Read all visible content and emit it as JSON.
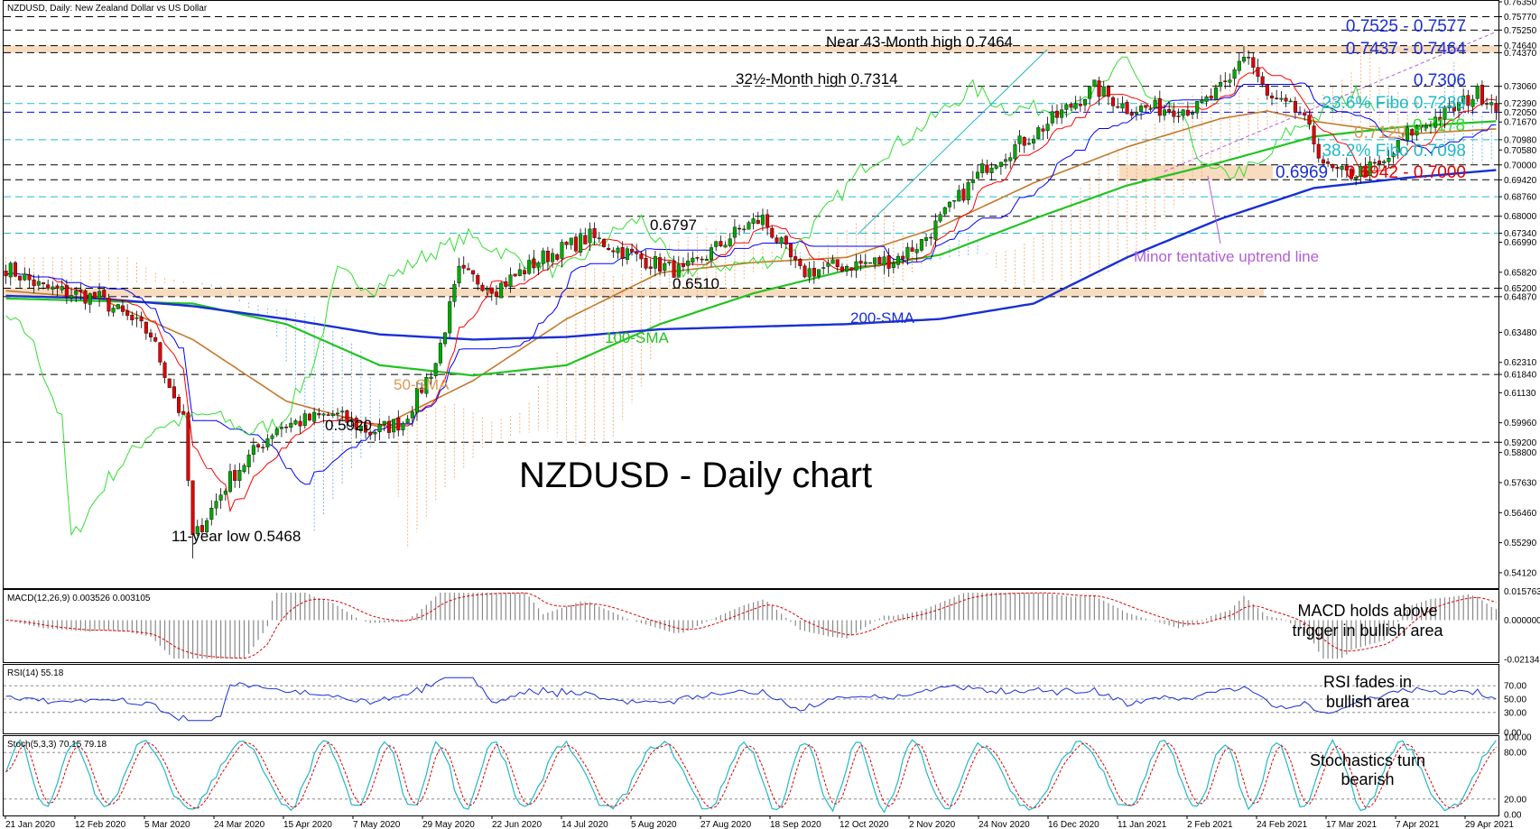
{
  "window_title": "NZDUSD, Daily:  New Zealand Dollar vs US Dollar",
  "colors": {
    "bull": "#00a800",
    "bear": "#e00000",
    "sma50": "#c47a2c",
    "sma100": "#22c322",
    "sma200": "#1a2fd4",
    "tenkan": "#ff0000",
    "kijun": "#0000ff",
    "chikou": "#33dd33",
    "cloud_a": "#f1a66f",
    "cloud_b": "#6fa8f1",
    "zone": "#f6d3b0",
    "cyan": "#22b8c7",
    "blue_text": "#1a2fd4",
    "red_text": "#e00000",
    "green_text": "#33dd33",
    "orange_text": "#d89a55",
    "purple": "#b260d6"
  },
  "chart_data": [
    {
      "type": "candlestick",
      "title": "NZDUSD - Daily chart",
      "ylim": [
        0.5352,
        0.7635
      ],
      "x_ticks": [
        "21 Jan 2020",
        "12 Feb 2020",
        "5 Mar 2020",
        "24 Mar 2020",
        "15 Apr 2020",
        "7 May 2020",
        "29 May 2020",
        "22 Jun 2020",
        "14 Jul 2020",
        "5 Aug 2020",
        "27 Aug 2020",
        "18 Sep 2020",
        "12 Oct 2020",
        "2 Nov 2020",
        "24 Nov 2020",
        "16 Dec 2020",
        "11 Jan 2021",
        "2 Feb 2021",
        "24 Feb 2021",
        "17 Mar 2021",
        "7 Apr 2021",
        "29 Apr 2021"
      ],
      "y_ticks": [
        "0.76350",
        "0.75770",
        "0.75250",
        "0.74640",
        "0.74370",
        "0.73060",
        "0.72390",
        "0.72050",
        "0.71670",
        "0.70980",
        "0.70580",
        "0.70000",
        "0.69420",
        "0.68760",
        "0.68000",
        "0.67340",
        "0.66990",
        "0.65820",
        "0.65200",
        "0.64870",
        "0.63480",
        "0.62310",
        "0.61840",
        "0.61130",
        "0.59960",
        "0.59200",
        "0.58800",
        "0.57630",
        "0.56460",
        "0.55290",
        "0.54120"
      ],
      "anchor_path": [
        [
          0,
          0.66
        ],
        [
          8,
          0.652
        ],
        [
          20,
          0.648
        ],
        [
          31,
          0.634
        ],
        [
          38,
          0.6
        ],
        [
          40,
          0.5535
        ],
        [
          42,
          0.56
        ],
        [
          48,
          0.578
        ],
        [
          58,
          0.598
        ],
        [
          70,
          0.603
        ],
        [
          78,
          0.596
        ],
        [
          85,
          0.6
        ],
        [
          92,
          0.623
        ],
        [
          97,
          0.658
        ],
        [
          105,
          0.652
        ],
        [
          115,
          0.664
        ],
        [
          125,
          0.672
        ],
        [
          135,
          0.664
        ],
        [
          145,
          0.658
        ],
        [
          158,
          0.676
        ],
        [
          162,
          0.679
        ],
        [
          170,
          0.658
        ],
        [
          176,
          0.66
        ],
        [
          190,
          0.663
        ],
        [
          196,
          0.67
        ],
        [
          210,
          0.7
        ],
        [
          220,
          0.712
        ],
        [
          233,
          0.73
        ],
        [
          240,
          0.722
        ],
        [
          255,
          0.722
        ],
        [
          262,
          0.732
        ],
        [
          265,
          0.746
        ],
        [
          270,
          0.726
        ],
        [
          277,
          0.72
        ],
        [
          283,
          0.698
        ],
        [
          287,
          0.696
        ],
        [
          295,
          0.7
        ],
        [
          300,
          0.712
        ],
        [
          310,
          0.722
        ],
        [
          315,
          0.728
        ],
        [
          319,
          0.724
        ]
      ],
      "series": [
        {
          "name": "50-SMA",
          "points": [
            [
              0,
              0.651
            ],
            [
              20,
              0.648
            ],
            [
              40,
              0.632
            ],
            [
              60,
              0.608
            ],
            [
              80,
              0.598
            ],
            [
              100,
              0.616
            ],
            [
              120,
              0.64
            ],
            [
              140,
              0.658
            ],
            [
              160,
              0.662
            ],
            [
              180,
              0.664
            ],
            [
              200,
              0.676
            ],
            [
              220,
              0.693
            ],
            [
              240,
              0.707
            ],
            [
              260,
              0.718
            ],
            [
              270,
              0.721
            ],
            [
              280,
              0.717
            ],
            [
              300,
              0.712
            ],
            [
              319,
              0.714
            ]
          ]
        },
        {
          "name": "100-SMA",
          "points": [
            [
              0,
              0.648
            ],
            [
              20,
              0.647
            ],
            [
              40,
              0.646
            ],
            [
              60,
              0.638
            ],
            [
              80,
              0.622
            ],
            [
              100,
              0.618
            ],
            [
              120,
              0.622
            ],
            [
              140,
              0.638
            ],
            [
              160,
              0.65
            ],
            [
              180,
              0.659
            ],
            [
              200,
              0.665
            ],
            [
              220,
              0.679
            ],
            [
              240,
              0.692
            ],
            [
              260,
              0.701
            ],
            [
              280,
              0.711
            ],
            [
              300,
              0.715
            ],
            [
              319,
              0.717
            ]
          ]
        },
        {
          "name": "200-SMA",
          "points": [
            [
              0,
              0.649
            ],
            [
              20,
              0.648
            ],
            [
              40,
              0.645
            ],
            [
              60,
              0.64
            ],
            [
              80,
              0.634
            ],
            [
              100,
              0.632
            ],
            [
              120,
              0.633
            ],
            [
              140,
              0.636
            ],
            [
              160,
              0.637
            ],
            [
              180,
              0.638
            ],
            [
              200,
              0.64
            ],
            [
              220,
              0.646
            ],
            [
              240,
              0.664
            ],
            [
              260,
              0.679
            ],
            [
              280,
              0.691
            ],
            [
              300,
              0.695
            ],
            [
              319,
              0.698
            ]
          ]
        }
      ]
    },
    {
      "type": "line",
      "title": "MACD(12,26,9) 0.003526 0.003105",
      "y_ticks": [
        "0.015763",
        "0.000000",
        "-0.021341"
      ],
      "ylim": [
        -0.0224,
        0.016
      ]
    },
    {
      "type": "line",
      "title": "RSI(14) 55.18",
      "y_ticks": [
        "70.00",
        "50.00",
        "30.00",
        "0.00"
      ],
      "ylim": [
        0,
        100
      ],
      "levels": [
        70,
        50,
        30
      ]
    },
    {
      "type": "line",
      "title": "Stoch(5,3,3) 70.15 79.18",
      "y_ticks": [
        "100.00",
        "80.00",
        "20.00",
        "0.00"
      ],
      "ylim": [
        0,
        100
      ],
      "levels": [
        80,
        20
      ]
    }
  ],
  "annotations": {
    "main_title": "NZDUSD - Daily chart",
    "near_high": "Near 43-Month high 0.7464",
    "month_high": "32½-Month high 0.7314",
    "low11": "11-year low 0.5468",
    "v6797": "0.6797",
    "v6510": "0.6510",
    "v5920": "0.5920",
    "sma50": "50-SMA",
    "sma100": "100-SMA",
    "sma200": "200-SMA",
    "r1": "0.7525 - 0.7577",
    "r2": "0.7437 - 0.7464",
    "r3": "0.7306",
    "fibo236": "23.6% Fibo 0.7239",
    "v7129": "0.7129",
    "v7178": "0.7178",
    "fibo382": "38.2% Fibo 0.7098",
    "v6969": "0.6969",
    "s1": "0.6942 - 0.7000",
    "trendline": "Minor tentative uptrend line",
    "macd_note_1": "MACD holds above",
    "macd_note_2": "trigger in bullish area",
    "rsi_note_1": "RSI fades in",
    "rsi_note_2": "bullish area",
    "stoch_note_1": "Stochastics turn",
    "stoch_note_2": "bearish"
  }
}
